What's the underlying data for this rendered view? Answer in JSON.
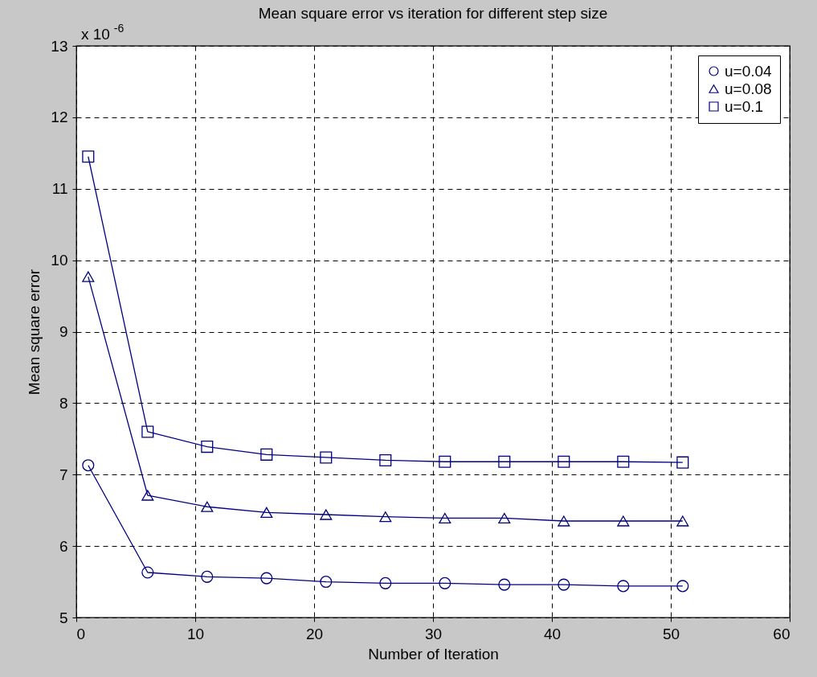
{
  "chart_data": {
    "type": "line",
    "title": "Mean square error vs iteration for different step size",
    "xlabel": "Number of Iteration",
    "ylabel": "Mean square error",
    "annotations": [
      "x 10$^{-6}$"
    ],
    "x": [
      1,
      6,
      11,
      16,
      21,
      26,
      31,
      36,
      41,
      46,
      51
    ],
    "xlim": [
      0,
      60
    ],
    "xticks": [
      0,
      10,
      20,
      30,
      40,
      50,
      60
    ],
    "ylim": [
      5,
      13
    ],
    "yticks": [
      5,
      6,
      7,
      8,
      9,
      10,
      11,
      12,
      13
    ],
    "grid": true,
    "legend": "top right",
    "series": [
      {
        "name": "u=0.04",
        "color": "#000080",
        "marker": "circle",
        "values": [
          7.13,
          5.63,
          5.57,
          5.55,
          5.5,
          5.48,
          5.48,
          5.46,
          5.46,
          5.44,
          5.44
        ]
      },
      {
        "name": "u=0.08",
        "color": "#000080",
        "marker": "triangle",
        "values": [
          9.77,
          6.71,
          6.55,
          6.47,
          6.44,
          6.41,
          6.39,
          6.39,
          6.35,
          6.35,
          6.35
        ]
      },
      {
        "name": "u=0.1",
        "color": "#000080",
        "marker": "square",
        "values": [
          11.45,
          7.6,
          7.39,
          7.28,
          7.24,
          7.2,
          7.18,
          7.18,
          7.18,
          7.18,
          7.17
        ]
      }
    ]
  }
}
